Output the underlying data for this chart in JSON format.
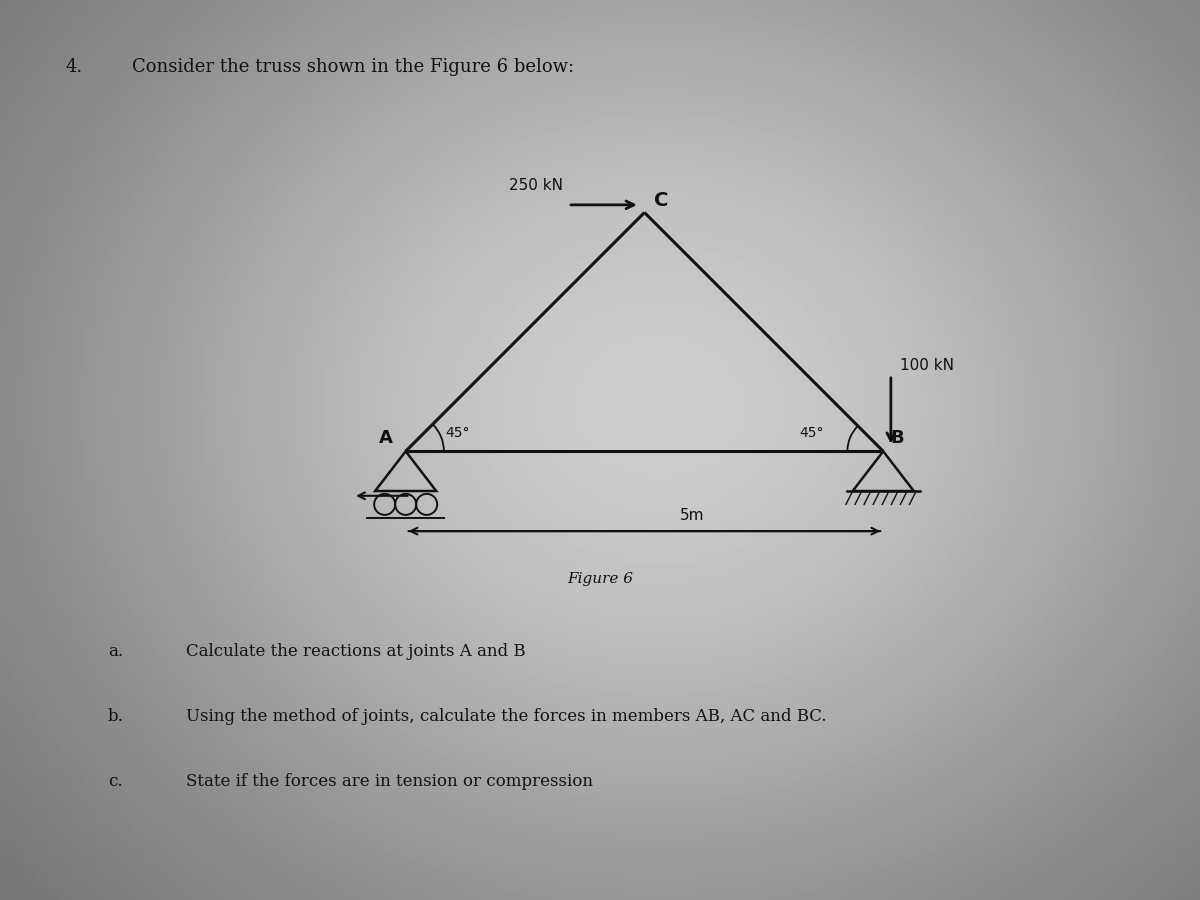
{
  "title_number": "4.",
  "title_text": "Consider the truss shown in the Figure 6 below:",
  "figure_label": "Figure 6",
  "nodes": {
    "A": [
      0.0,
      0.0
    ],
    "B": [
      5.0,
      0.0
    ],
    "C": [
      2.5,
      2.5
    ]
  },
  "members": [
    [
      "A",
      "B"
    ],
    [
      "A",
      "C"
    ],
    [
      "B",
      "C"
    ]
  ],
  "load_250kN_label": "250 kN",
  "load_100kN_label": "100 kN",
  "span_label": "5m",
  "questions": [
    {
      "label": "a.",
      "text": "Calculate the reactions at joints A and B"
    },
    {
      "label": "b.",
      "text": "Using the method of joints, calculate the forces in members AB, AC and BC."
    },
    {
      "label": "c.",
      "text": "State if the forces are in tension or compression"
    }
  ],
  "bg_color": "#c8c5bf",
  "paper_color": "#e8e5df",
  "truss_color": "#111111",
  "text_color": "#111111",
  "fontsize_title": 13,
  "fontsize_question": 12
}
